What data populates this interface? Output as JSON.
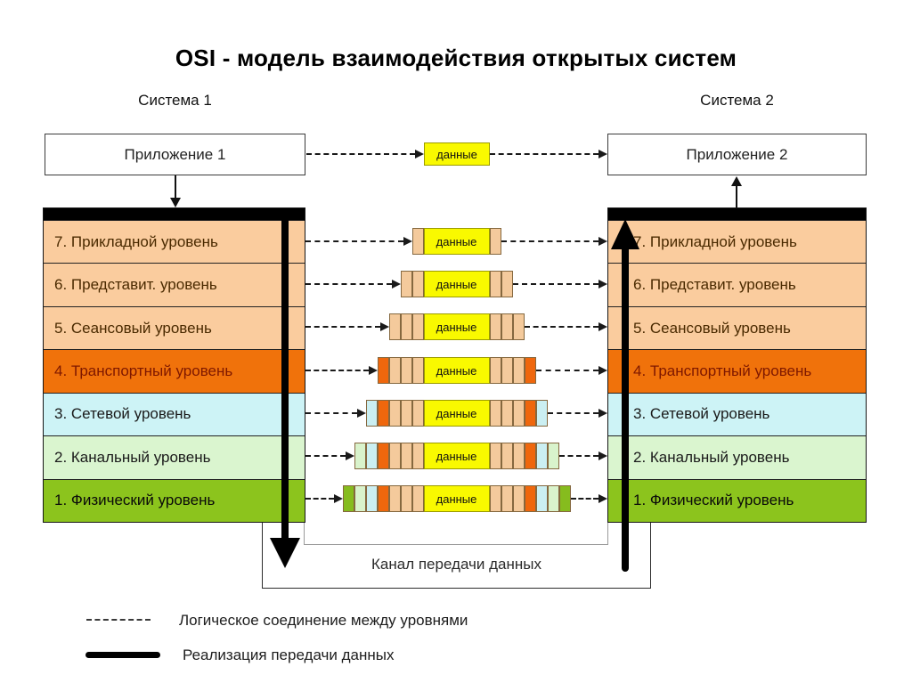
{
  "title": "OSI - модель взаимодействия открытых систем",
  "system1": {
    "label": "Система 1",
    "app_label": "Приложение 1"
  },
  "system2": {
    "label": "Система 2",
    "app_label": "Приложение 2"
  },
  "layers": [
    {
      "label": "7. Прикладной уровень",
      "color": "#FACC9E",
      "text_color": "#4A2A00"
    },
    {
      "label": "6. Представит. уровень",
      "color": "#FACC9E",
      "text_color": "#4A2A00"
    },
    {
      "label": "5. Сеансовый уровень",
      "color": "#FACC9E",
      "text_color": "#4A2A00"
    },
    {
      "label": "4. Транспортный уровень",
      "color": "#F0720B",
      "text_color": "#7E1800"
    },
    {
      "label": "3. Сетевой уровень",
      "color": "#CDF3F6",
      "text_color": "#1A1A1A"
    },
    {
      "label": "2. Канальный уровень",
      "color": "#DAF5CF",
      "text_color": "#1A1A1A"
    },
    {
      "label": "1. Физический уровень",
      "color": "#8CC41D",
      "text_color": "#0A0A0A"
    }
  ],
  "packets": {
    "data_label": "данные",
    "app": [
      "data"
    ],
    "rows": [
      [
        "upper",
        "data",
        "upper"
      ],
      [
        "upper",
        "upper",
        "data",
        "upper",
        "upper"
      ],
      [
        "upper",
        "upper",
        "upper",
        "data",
        "upper",
        "upper",
        "upper"
      ],
      [
        "transport",
        "upper",
        "upper",
        "upper",
        "data",
        "upper",
        "upper",
        "upper",
        "transport"
      ],
      [
        "network",
        "transport",
        "upper",
        "upper",
        "upper",
        "data",
        "upper",
        "upper",
        "upper",
        "transport",
        "network"
      ],
      [
        "datalink",
        "network",
        "transport",
        "upper",
        "upper",
        "upper",
        "data",
        "upper",
        "upper",
        "upper",
        "transport",
        "network",
        "datalink"
      ],
      [
        "physical",
        "datalink",
        "network",
        "transport",
        "upper",
        "upper",
        "upper",
        "data",
        "upper",
        "upper",
        "upper",
        "transport",
        "network",
        "datalink",
        "physical"
      ]
    ]
  },
  "colors": {
    "data": "#F9F900",
    "upper": "#F4CA9C",
    "transport": "#EF670D",
    "network": "#CBEFF2",
    "datalink": "#D9F3CC",
    "physical": "#86BC1E",
    "arrow": "#000000"
  },
  "channel": {
    "label": "Канал передачи данных"
  },
  "legend": [
    {
      "style": "dashed",
      "label": "Логическое соединение между уровнями"
    },
    {
      "style": "solid",
      "label": "Реализация передачи данных"
    }
  ]
}
